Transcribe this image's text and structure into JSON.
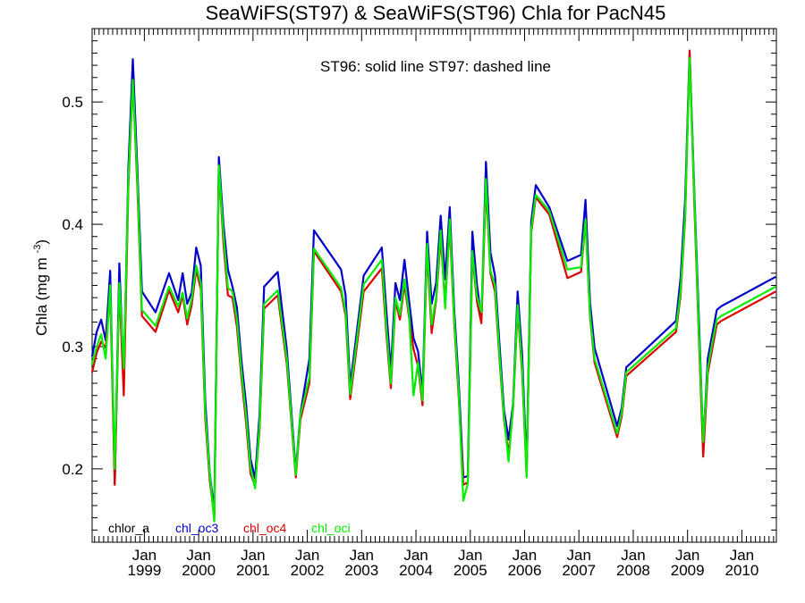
{
  "chart_data": {
    "type": "line",
    "title": "SeaWiFS(ST97) & SeaWiFS(ST96)  Chla for PacN45",
    "subtitle": "ST96: solid line   ST97: dashed line",
    "ylabel": "Chla (mg m",
    "ylabel_sup": "-3",
    "ylabel_close": ")",
    "xlabel": "",
    "xlim": [
      "1998-01-15",
      "2010-08-20"
    ],
    "ylim": [
      0.14,
      0.56
    ],
    "y_ticks": [
      0.2,
      0.3,
      0.4,
      0.5
    ],
    "y_tick_labels": [
      "0.2",
      "0.3",
      "0.4",
      "0.5"
    ],
    "x_ticks": [
      "1999-01",
      "2000-01",
      "2001-01",
      "2002-01",
      "2003-01",
      "2004-01",
      "2005-01",
      "2006-01",
      "2007-01",
      "2008-01",
      "2009-01",
      "2010-01"
    ],
    "x_tick_month_label": "Jan",
    "x_tick_year_labels": [
      "1999",
      "2000",
      "2001",
      "2002",
      "2003",
      "2004",
      "2005",
      "2006",
      "2007",
      "2008",
      "2009",
      "2010"
    ],
    "legend_placement": "bottom-left",
    "legend": [
      {
        "name": "chlor_a",
        "color": "#000000"
      },
      {
        "name": "chl_oc3",
        "color": "#0000cc"
      },
      {
        "name": "chl_oc4",
        "color": "#dd0000"
      },
      {
        "name": "chl_oci",
        "color": "#00ee00"
      }
    ],
    "dates": [
      "1998-01",
      "1998-02",
      "1998-03",
      "1998-04",
      "1998-05",
      "1998-06",
      "1998-07",
      "1998-08",
      "1998-09",
      "1998-10",
      "1998-11",
      "1998-12",
      "1999-03",
      "1999-06",
      "1999-08",
      "1999-09",
      "1999-10",
      "1999-11",
      "1999-12",
      "2000-01",
      "2000-02",
      "2000-03",
      "2000-04",
      "2000-05",
      "2000-06",
      "2000-07",
      "2000-08",
      "2000-09",
      "2000-10",
      "2000-11",
      "2000-12",
      "2001-01",
      "2001-02",
      "2001-03",
      "2001-06",
      "2001-08",
      "2001-10",
      "2001-11",
      "2002-01",
      "2002-02",
      "2002-08",
      "2002-09",
      "2002-10",
      "2003-01",
      "2003-05",
      "2003-06",
      "2003-07",
      "2003-08",
      "2003-09",
      "2003-10",
      "2003-11",
      "2003-12",
      "2004-01",
      "2004-02",
      "2004-03",
      "2004-04",
      "2004-05",
      "2004-06",
      "2004-07",
      "2004-08",
      "2004-09",
      "2004-10",
      "2004-11",
      "2004-12",
      "2005-01",
      "2005-02",
      "2005-03",
      "2005-04",
      "2005-05",
      "2005-06",
      "2005-07",
      "2005-08",
      "2005-09",
      "2005-10",
      "2005-11",
      "2005-12",
      "2006-01",
      "2006-02",
      "2006-03",
      "2006-06",
      "2006-10",
      "2007-01",
      "2007-02",
      "2007-03",
      "2007-04",
      "2007-09",
      "2007-10",
      "2007-11",
      "2008-10",
      "2008-11",
      "2008-12",
      "2009-01",
      "2009-02",
      "2009-03",
      "2009-04",
      "2009-05",
      "2009-06",
      "2009-07",
      "2009-08",
      "2009-09",
      "2009-10",
      "2009-11",
      "2009-12",
      "2010-01",
      "2010-02",
      "2010-03",
      "2010-04",
      "2010-05",
      "2010-06",
      "2010-07",
      "2010-08"
    ],
    "series": [
      {
        "name": "chl_oc3",
        "color": "#0000cc",
        "values": [
          0.292,
          0.312,
          0.322,
          0.305,
          0.362,
          0.188,
          0.368,
          0.272,
          0.445,
          0.535,
          0.445,
          0.345,
          0.328,
          0.36,
          0.338,
          0.36,
          0.335,
          0.344,
          0.381,
          0.366,
          0.255,
          0.196,
          0.165,
          0.455,
          0.4,
          0.363,
          0.349,
          0.332,
          0.288,
          0.253,
          0.208,
          0.192,
          0.245,
          0.349,
          0.361,
          0.298,
          0.198,
          0.245,
          0.29,
          0.395,
          0.363,
          0.342,
          0.268,
          0.358,
          0.381,
          0.33,
          0.28,
          0.352,
          0.338,
          0.371,
          0.338,
          0.307,
          0.296,
          0.262,
          0.394,
          0.335,
          0.352,
          0.407,
          0.355,
          0.414,
          0.329,
          0.27,
          0.193,
          0.194,
          0.394,
          0.351,
          0.322,
          0.451,
          0.377,
          0.358,
          0.301,
          0.248,
          0.224,
          0.253,
          0.345,
          0.293,
          0.2,
          0.402,
          0.432,
          0.414,
          0.37,
          0.375,
          0.42,
          0.336,
          0.299,
          0.235,
          0.25,
          0.283,
          0.321,
          0.356,
          0.42,
          0.541,
          0.43,
          0.328,
          0.22,
          0.29,
          0.31,
          0.33,
          0.333,
          0.335,
          0.337,
          0.339,
          0.341,
          0.343,
          0.345,
          0.347,
          0.349,
          0.351,
          0.353,
          0.355,
          0.357
        ]
      },
      {
        "name": "chl_oc4",
        "color": "#dd0000",
        "values": [
          0.279,
          0.295,
          0.304,
          0.299,
          0.345,
          0.187,
          0.35,
          0.26,
          0.43,
          0.518,
          0.43,
          0.325,
          0.312,
          0.346,
          0.328,
          0.342,
          0.318,
          0.334,
          0.363,
          0.347,
          0.241,
          0.19,
          0.16,
          0.448,
          0.385,
          0.342,
          0.34,
          0.316,
          0.274,
          0.238,
          0.196,
          0.186,
          0.232,
          0.331,
          0.342,
          0.286,
          0.193,
          0.24,
          0.27,
          0.378,
          0.345,
          0.325,
          0.257,
          0.345,
          0.364,
          0.311,
          0.266,
          0.337,
          0.322,
          0.351,
          0.324,
          0.298,
          0.284,
          0.252,
          0.38,
          0.311,
          0.338,
          0.389,
          0.336,
          0.399,
          0.318,
          0.258,
          0.187,
          0.189,
          0.376,
          0.337,
          0.319,
          0.432,
          0.36,
          0.345,
          0.289,
          0.24,
          0.212,
          0.249,
          0.331,
          0.278,
          0.194,
          0.393,
          0.422,
          0.408,
          0.356,
          0.361,
          0.403,
          0.324,
          0.287,
          0.226,
          0.243,
          0.276,
          0.312,
          0.342,
          0.405,
          0.542,
          0.42,
          0.313,
          0.21,
          0.278,
          0.298,
          0.318,
          0.321,
          0.323,
          0.325,
          0.327,
          0.329,
          0.331,
          0.333,
          0.335,
          0.337,
          0.339,
          0.341,
          0.343,
          0.345
        ]
      },
      {
        "name": "chl_oci",
        "color": "#00ee00",
        "values": [
          0.285,
          0.3,
          0.31,
          0.29,
          0.35,
          0.2,
          0.352,
          0.282,
          0.435,
          0.518,
          0.436,
          0.33,
          0.317,
          0.349,
          0.333,
          0.344,
          0.323,
          0.339,
          0.366,
          0.352,
          0.246,
          0.195,
          0.157,
          0.448,
          0.392,
          0.348,
          0.345,
          0.322,
          0.279,
          0.244,
          0.201,
          0.184,
          0.236,
          0.335,
          0.346,
          0.29,
          0.195,
          0.244,
          0.275,
          0.38,
          0.348,
          0.328,
          0.261,
          0.351,
          0.371,
          0.316,
          0.27,
          0.34,
          0.326,
          0.355,
          0.327,
          0.26,
          0.287,
          0.256,
          0.384,
          0.318,
          0.34,
          0.395,
          0.331,
          0.404,
          0.321,
          0.262,
          0.174,
          0.188,
          0.378,
          0.341,
          0.328,
          0.437,
          0.362,
          0.35,
          0.292,
          0.243,
          0.206,
          0.251,
          0.334,
          0.282,
          0.193,
          0.396,
          0.424,
          0.411,
          0.363,
          0.365,
          0.404,
          0.326,
          0.29,
          0.229,
          0.246,
          0.279,
          0.315,
          0.345,
          0.408,
          0.536,
          0.426,
          0.318,
          0.222,
          0.282,
          0.303,
          0.322,
          0.325,
          0.327,
          0.329,
          0.331,
          0.333,
          0.335,
          0.337,
          0.339,
          0.341,
          0.343,
          0.345,
          0.347,
          0.349
        ]
      }
    ]
  }
}
